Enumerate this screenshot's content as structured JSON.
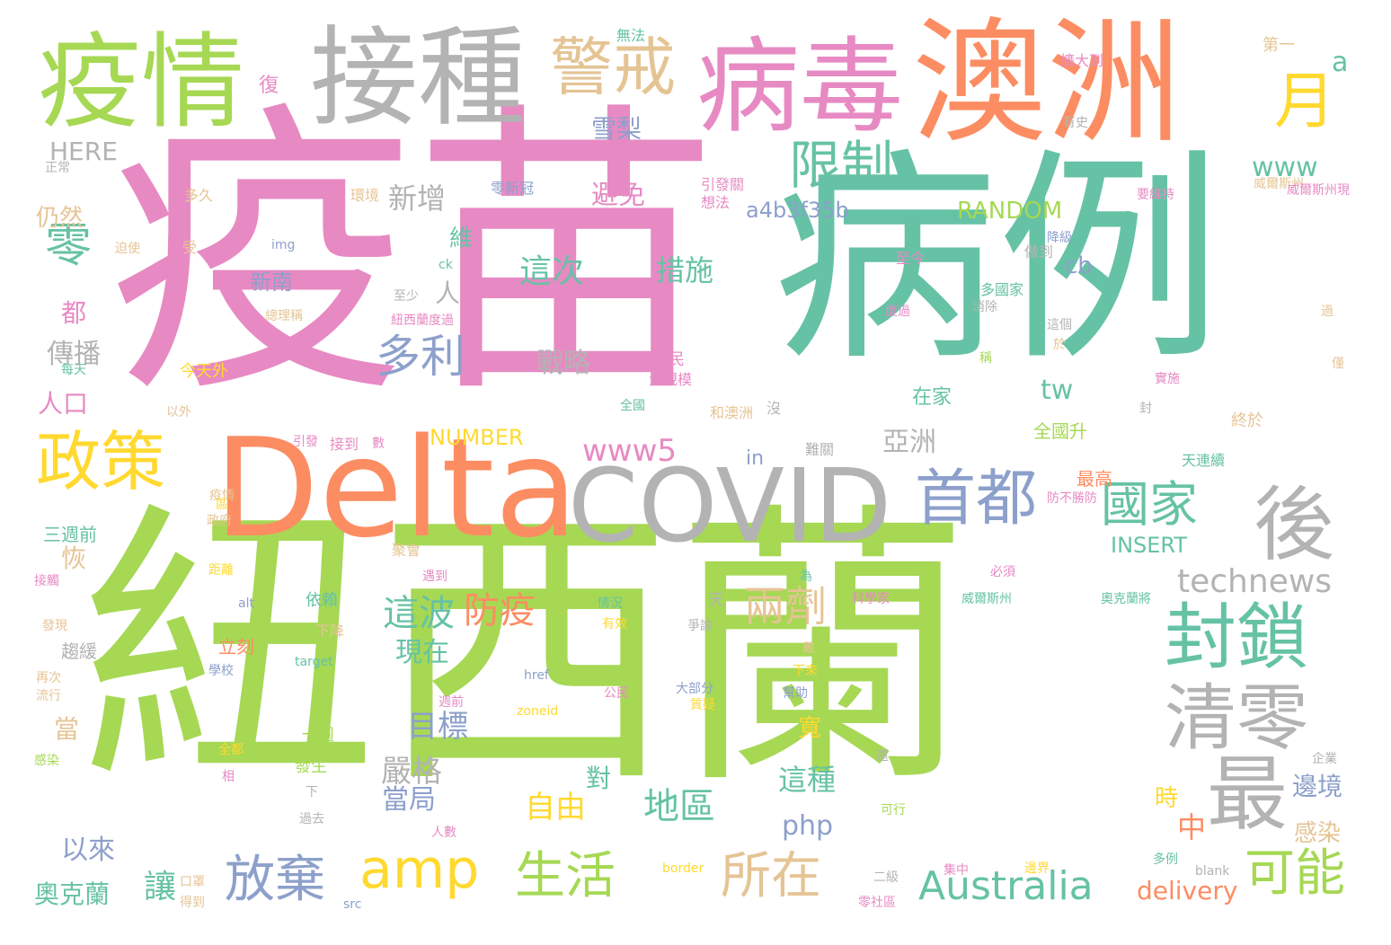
{
  "palette": {
    "green": "#a6d854",
    "pink": "#e78ac3",
    "teal": "#66c2a5",
    "orange": "#fc8d62",
    "gray": "#b3b3b3",
    "blue": "#8da0cb",
    "yellow": "#ffd92f",
    "tan": "#e5c494"
  },
  "words": [
    "紐西蘭",
    "疫苗",
    "病例",
    "澳洲",
    "Delta",
    "COVID",
    "接種",
    "疫情",
    "病毒",
    "警戒",
    "月",
    "限制",
    "封鎖",
    "清零",
    "最",
    "後",
    "首都",
    "國家",
    "政策",
    "零",
    "多利",
    "amp",
    "放棄",
    "生活",
    "所在",
    "Australia",
    "可能",
    "technews",
    "兩劑",
    "防疫",
    "這波",
    "現在",
    "目標",
    "嚴格",
    "當局",
    "自由",
    "地區",
    "這種",
    "邊境",
    "感染",
    "時",
    "中",
    "delivery",
    "php",
    "讓",
    "奧克蘭",
    "以來",
    "恢",
    "三週前",
    "當",
    "人口",
    "傳播",
    "都",
    "仍然",
    "HERE",
    "復",
    "雪梨",
    "新增",
    "www",
    "a",
    "RANDOM",
    "a4b3f35b",
    "避免",
    "這次",
    "措施",
    "戰略",
    "新南",
    "人",
    "維",
    "cb",
    "tw",
    "www5",
    "亞洲",
    "在家",
    "in",
    "NUMBER",
    "INSERT",
    "全國升",
    "對",
    "寬",
    "最高",
    "天",
    "下降",
    "立刻",
    "發生",
    "一週",
    "趨緩",
    "全民",
    "大規模",
    "今天外",
    "第一",
    "擴大到",
    "有史",
    "威爾斯州",
    "零新冠",
    "引發關",
    "想法",
    "環境",
    "多久",
    "正常",
    "img",
    "ck",
    "受",
    "迫使",
    "至少",
    "紐西蘭度過",
    "每天",
    "總理稱",
    "以外",
    "全國",
    "和澳洲",
    "引發",
    "接到",
    "數",
    "難關",
    "至今",
    "許多國家",
    "消除",
    "做到",
    "僅",
    "要維持",
    "威爾斯州現",
    "降級",
    "度過",
    "這個",
    "於",
    "稱",
    "沒",
    "封",
    "天連續",
    "終於",
    "防不勝防",
    "必須",
    "聚會",
    "遇到",
    "依賴",
    "為",
    "科學家",
    "威爾斯州",
    "奧克蘭將",
    "情況",
    "有效",
    "爭論",
    "戴",
    "幫助",
    "下來",
    "公民",
    "大部分",
    "質疑",
    "週前",
    "href",
    "zoneid",
    "target",
    "alt",
    "學校",
    "再次",
    "流行",
    "發現",
    "接觸",
    "感染",
    "距離",
    "政府",
    "疫情",
    "全都",
    "相",
    "下",
    "過去",
    "人數",
    "口罩",
    "得到",
    "集中",
    "邊界",
    "多例",
    "blank",
    "border",
    "src",
    "區",
    "零社區",
    "二級",
    "可行",
    "企業",
    "還",
    "無法",
    "過",
    "實施"
  ]
}
